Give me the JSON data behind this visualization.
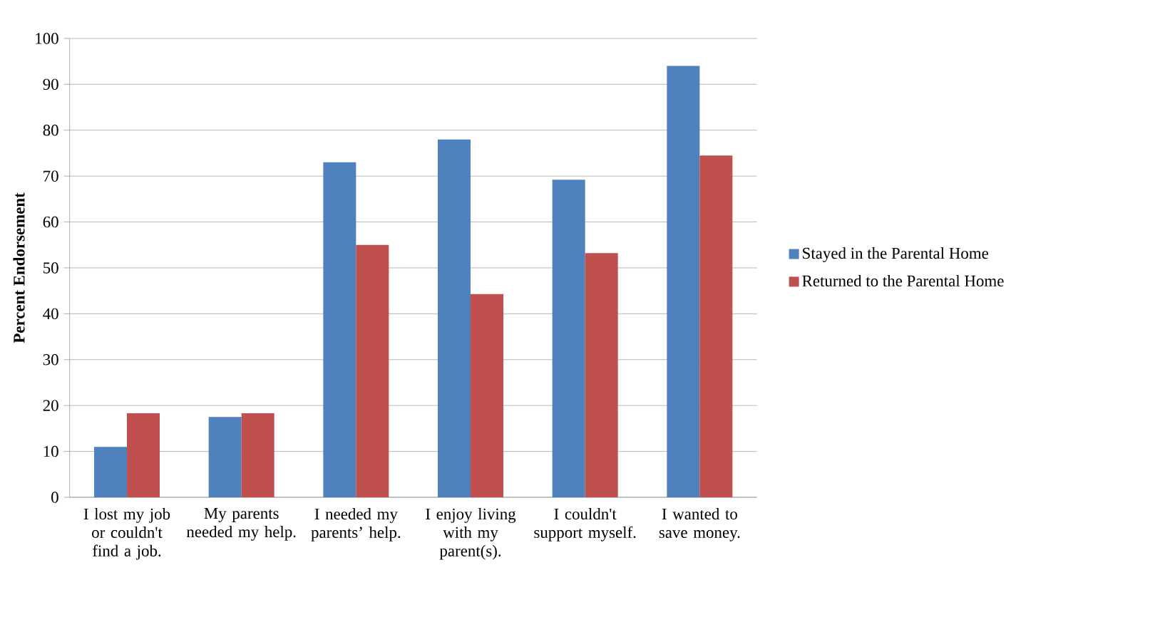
{
  "chart_data": {
    "type": "bar",
    "ylabel": "Percent Endorsement",
    "categories": [
      "I lost my job or couldn't find a job.",
      "My parents needed my help.",
      "I needed my parents’ help.",
      "I enjoy living with my parent(s).",
      "I couldn't support myself.",
      "I wanted to save money."
    ],
    "series": [
      {
        "name": "Stayed in the Parental Home",
        "color": "#4f81bd",
        "values": [
          11,
          17.5,
          73,
          78,
          69.2,
          94
        ]
      },
      {
        "name": "Returned to the Parental Home",
        "color": "#c0504d",
        "values": [
          18.3,
          18.3,
          55,
          44.3,
          53.2,
          74.5
        ]
      }
    ],
    "ylim": [
      0,
      100
    ],
    "yticks": [
      0,
      10,
      20,
      30,
      40,
      50,
      60,
      70,
      80,
      90,
      100
    ],
    "grid": "y",
    "legend": "right"
  }
}
